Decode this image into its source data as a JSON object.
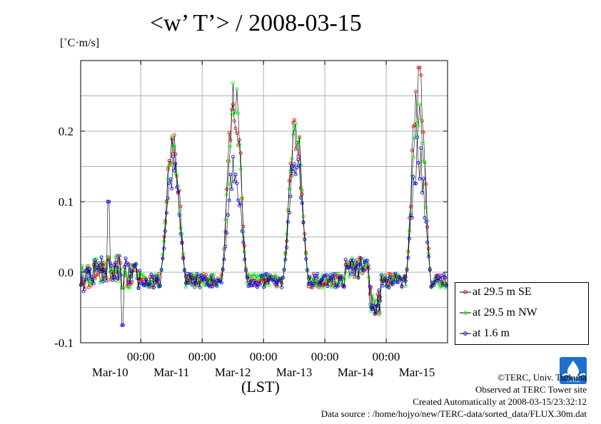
{
  "title": "<w’ T’> / 2008-03-15",
  "unit_label": "[˚C·m/s]",
  "xlabel": "(LST)",
  "footer": {
    "copyright": "©TERC, Univ. Tsukuba",
    "observed": "Observed at TERC Tower site",
    "created": "Created Automatically at 2008-03-15/23:32:12",
    "source": "Data source : /home/hojyo/new/TERC-data/sorted_data/FLUX.30m.dat",
    "logo_text": "TERC"
  },
  "chart_data": {
    "type": "line",
    "title": "<w’ T’> / 2008-03-15",
    "ylabel": "[˚C·m/s]",
    "xlabel": "(LST)",
    "xlim": [
      -0.98,
      5.0
    ],
    "ylim": [
      -0.1,
      0.3
    ],
    "yticks": [
      -0.1,
      0.0,
      0.1,
      0.2
    ],
    "ytick_labels": [
      "-0.1",
      "0.0",
      "0.1",
      "0.2"
    ],
    "xticks": [
      0,
      1,
      2,
      3,
      4
    ],
    "xtick_labels": [
      "00:00",
      "00:00",
      "00:00",
      "00:00",
      "00:00"
    ],
    "date_labels": [
      {
        "x": -0.5,
        "text": "Mar-10"
      },
      {
        "x": 0.5,
        "text": "Mar-11"
      },
      {
        "x": 1.5,
        "text": "Mar-12"
      },
      {
        "x": 2.5,
        "text": "Mar-13"
      },
      {
        "x": 3.5,
        "text": "Mar-14"
      },
      {
        "x": 4.5,
        "text": "Mar-15"
      }
    ],
    "x_unit": "days (00:00 = midnight)",
    "grid": true,
    "legend_position": "outside-bottom-right",
    "peaks": [
      {
        "x": 0.44,
        "SE": 0.205,
        "NW": 0.19,
        "B": 0.155
      },
      {
        "x": 1.44,
        "SE": 0.277,
        "NW": 0.285,
        "B": 0.16
      },
      {
        "x": 2.44,
        "SE": 0.21,
        "NW": 0.214,
        "B": 0.175
      },
      {
        "x": 4.48,
        "SE": 0.282,
        "NW": 0.262,
        "B": 0.178
      }
    ],
    "series": [
      {
        "name": "at 29.5 m SE",
        "color": "#ff0000"
      },
      {
        "name": "at 29.5 m NW",
        "color": "#00ff00"
      },
      {
        "name": "at 1.6 m",
        "color": "#0000ff"
      }
    ]
  }
}
